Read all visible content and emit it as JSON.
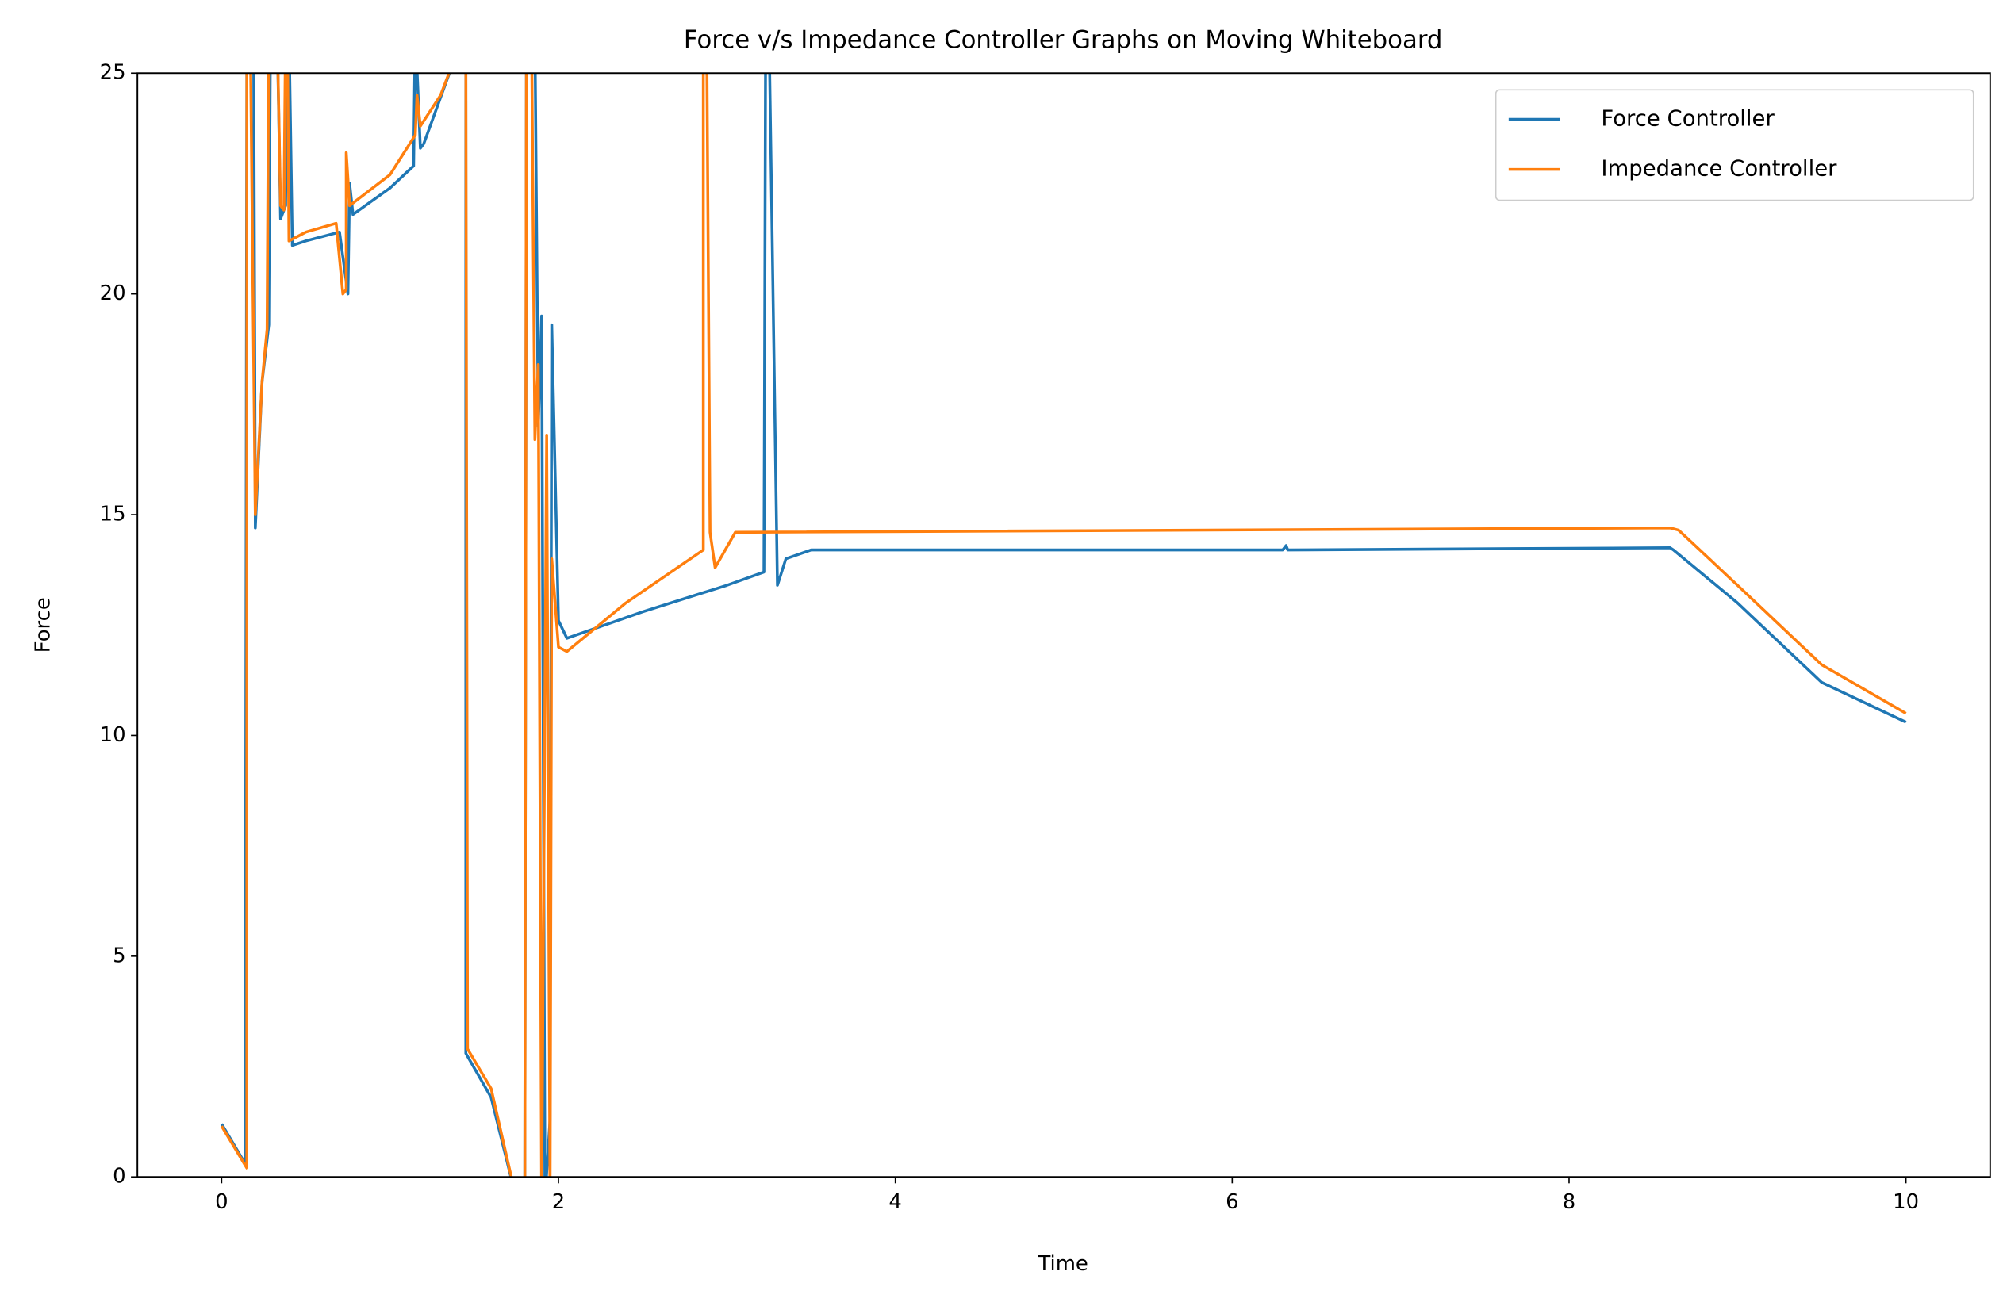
{
  "chart_data": {
    "type": "line",
    "title": "Force v/s Impedance Controller Graphs on Moving Whiteboard",
    "xlabel": "Time",
    "ylabel": "Force",
    "xlim": [
      -0.5,
      10.5
    ],
    "ylim": [
      0,
      25
    ],
    "xticks": [
      0,
      2,
      4,
      6,
      8,
      10
    ],
    "yticks": [
      0,
      5,
      10,
      15,
      20,
      25
    ],
    "legend": "upper right",
    "series": [
      {
        "name": "Force Controller",
        "color": "#1f77b4",
        "x": [
          0,
          0.14,
          0.15,
          0.19,
          0.2,
          0.24,
          0.28,
          0.29,
          0.33,
          0.35,
          0.38,
          0.39,
          0.4,
          0.42,
          0.5,
          0.7,
          0.75,
          0.76,
          0.78,
          1.0,
          1.14,
          1.15,
          1.18,
          1.2,
          1.4,
          1.45,
          1.45,
          1.6,
          1.75,
          1.8,
          1.81,
          1.86,
          1.88,
          1.9,
          1.92,
          1.95,
          1.96,
          2.0,
          2.05,
          2.5,
          3.0,
          3.22,
          3.23,
          3.25,
          3.3,
          3.35,
          3.5,
          6.3,
          6.32,
          6.33,
          8.6,
          8.62,
          9.0,
          9.5,
          10
        ],
        "values": [
          1.2,
          0.3,
          26,
          26,
          14.7,
          18,
          19.3,
          26,
          26,
          21.7,
          22,
          26,
          26,
          21.1,
          21.2,
          21.4,
          20,
          22.5,
          21.8,
          22.4,
          22.9,
          26,
          23.3,
          23.4,
          25.5,
          26,
          2.8,
          1.8,
          -0.5,
          -0.5,
          26,
          26,
          17,
          19.5,
          -0.5,
          1.3,
          19.3,
          12.6,
          12.2,
          12.8,
          13.4,
          13.7,
          26,
          26,
          13.4,
          14,
          14.2,
          14.2,
          14.3,
          14.2,
          14.25,
          14.2,
          13.0,
          11.2,
          10.3
        ]
      },
      {
        "name": "Impedance Controller",
        "color": "#ff7f0e",
        "x": [
          0,
          0.15,
          0.15,
          0.17,
          0.2,
          0.24,
          0.27,
          0.28,
          0.33,
          0.35,
          0.37,
          0.38,
          0.39,
          0.4,
          0.5,
          0.68,
          0.72,
          0.74,
          0.74,
          0.76,
          1.0,
          1.15,
          1.16,
          1.18,
          1.3,
          1.45,
          1.46,
          1.6,
          1.75,
          1.8,
          1.81,
          1.84,
          1.86,
          1.88,
          1.9,
          1.93,
          1.95,
          1.96,
          2.0,
          2.05,
          2.4,
          2.86,
          2.86,
          2.88,
          2.9,
          2.93,
          3.05,
          8.6,
          8.65,
          9.0,
          9.5,
          10
        ],
        "values": [
          1.15,
          0.2,
          26,
          26,
          15,
          18,
          19.2,
          26,
          26,
          22,
          21.9,
          26,
          26,
          21.2,
          21.4,
          21.6,
          20,
          20.1,
          23.2,
          22,
          22.7,
          23.6,
          24.5,
          23.8,
          24.5,
          26,
          2.9,
          2,
          -0.5,
          -0.5,
          26,
          26,
          16.7,
          18.4,
          -0.5,
          16.8,
          -0.5,
          14,
          12,
          11.9,
          13,
          14.2,
          26,
          26,
          14.6,
          13.8,
          14.6,
          14.7,
          14.65,
          13.4,
          11.6,
          10.5
        ]
      }
    ]
  }
}
